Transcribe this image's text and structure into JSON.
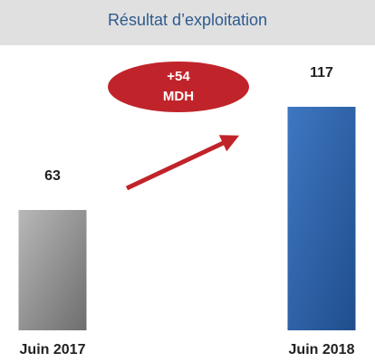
{
  "chart_data": {
    "type": "bar",
    "title": "Résultat d’exploitation",
    "categories": [
      "Juin 2017",
      "Juin 2018"
    ],
    "values": [
      63,
      117
    ],
    "colors": [
      "#8a8a8a",
      "#2d5fa3"
    ],
    "annotation": {
      "lines": [
        "+54",
        "MDH"
      ],
      "color": "#c0242a"
    }
  }
}
